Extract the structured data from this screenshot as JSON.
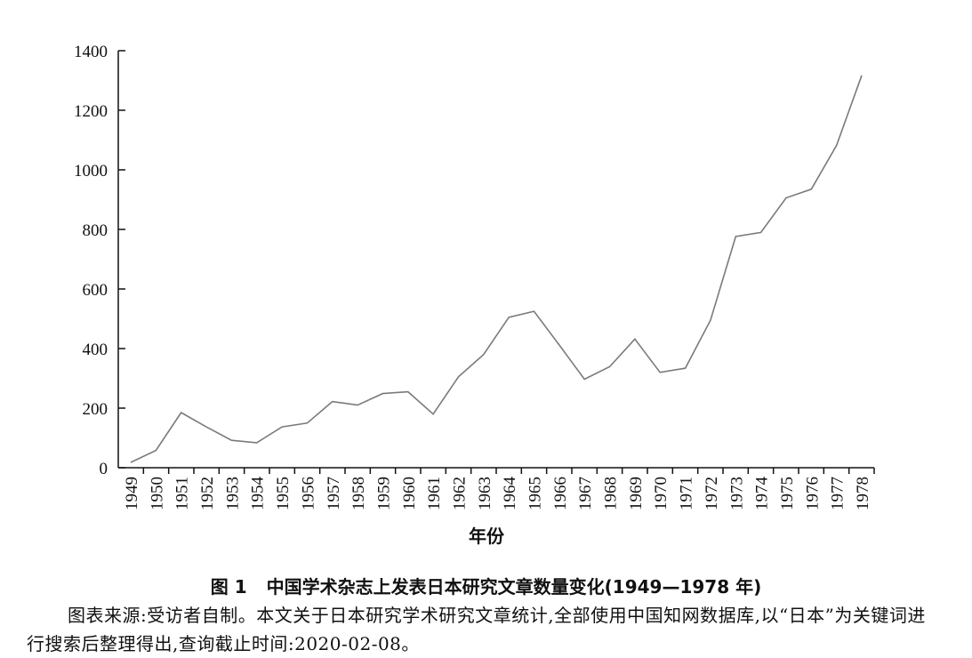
{
  "chart_data": {
    "type": "line",
    "categories": [
      "1949",
      "1950",
      "1951",
      "1952",
      "1953",
      "1954",
      "1955",
      "1956",
      "1957",
      "1958",
      "1959",
      "1960",
      "1961",
      "1962",
      "1963",
      "1964",
      "1965",
      "1966",
      "1967",
      "1968",
      "1969",
      "1970",
      "1971",
      "1972",
      "1973",
      "1974",
      "1975",
      "1976",
      "1977",
      "1978"
    ],
    "values": [
      18,
      58,
      185,
      137,
      92,
      84,
      137,
      150,
      222,
      210,
      249,
      255,
      180,
      305,
      380,
      505,
      525,
      412,
      297,
      339,
      432,
      320,
      334,
      495,
      776,
      790,
      906,
      935,
      1082,
      1317
    ],
    "yticks": [
      "0",
      "200",
      "400",
      "600",
      "800",
      "1000",
      "1200",
      "1400"
    ],
    "ylim": [
      0,
      1400
    ],
    "xlabel": "年份",
    "ylabel": "",
    "grid": false,
    "line_color": "#7a7a7a"
  },
  "caption": {
    "number": "图 1",
    "text": "中国学术杂志上发表日本研究文章数量变化(1949—1978 年)"
  },
  "note": "图表来源:受访者自制。本文关于日本研究学术研究文章统计,全部使用中国知网数据库,以“日本”为关键词进行搜索后整理得出,查询截止时间:2020-02-08。"
}
